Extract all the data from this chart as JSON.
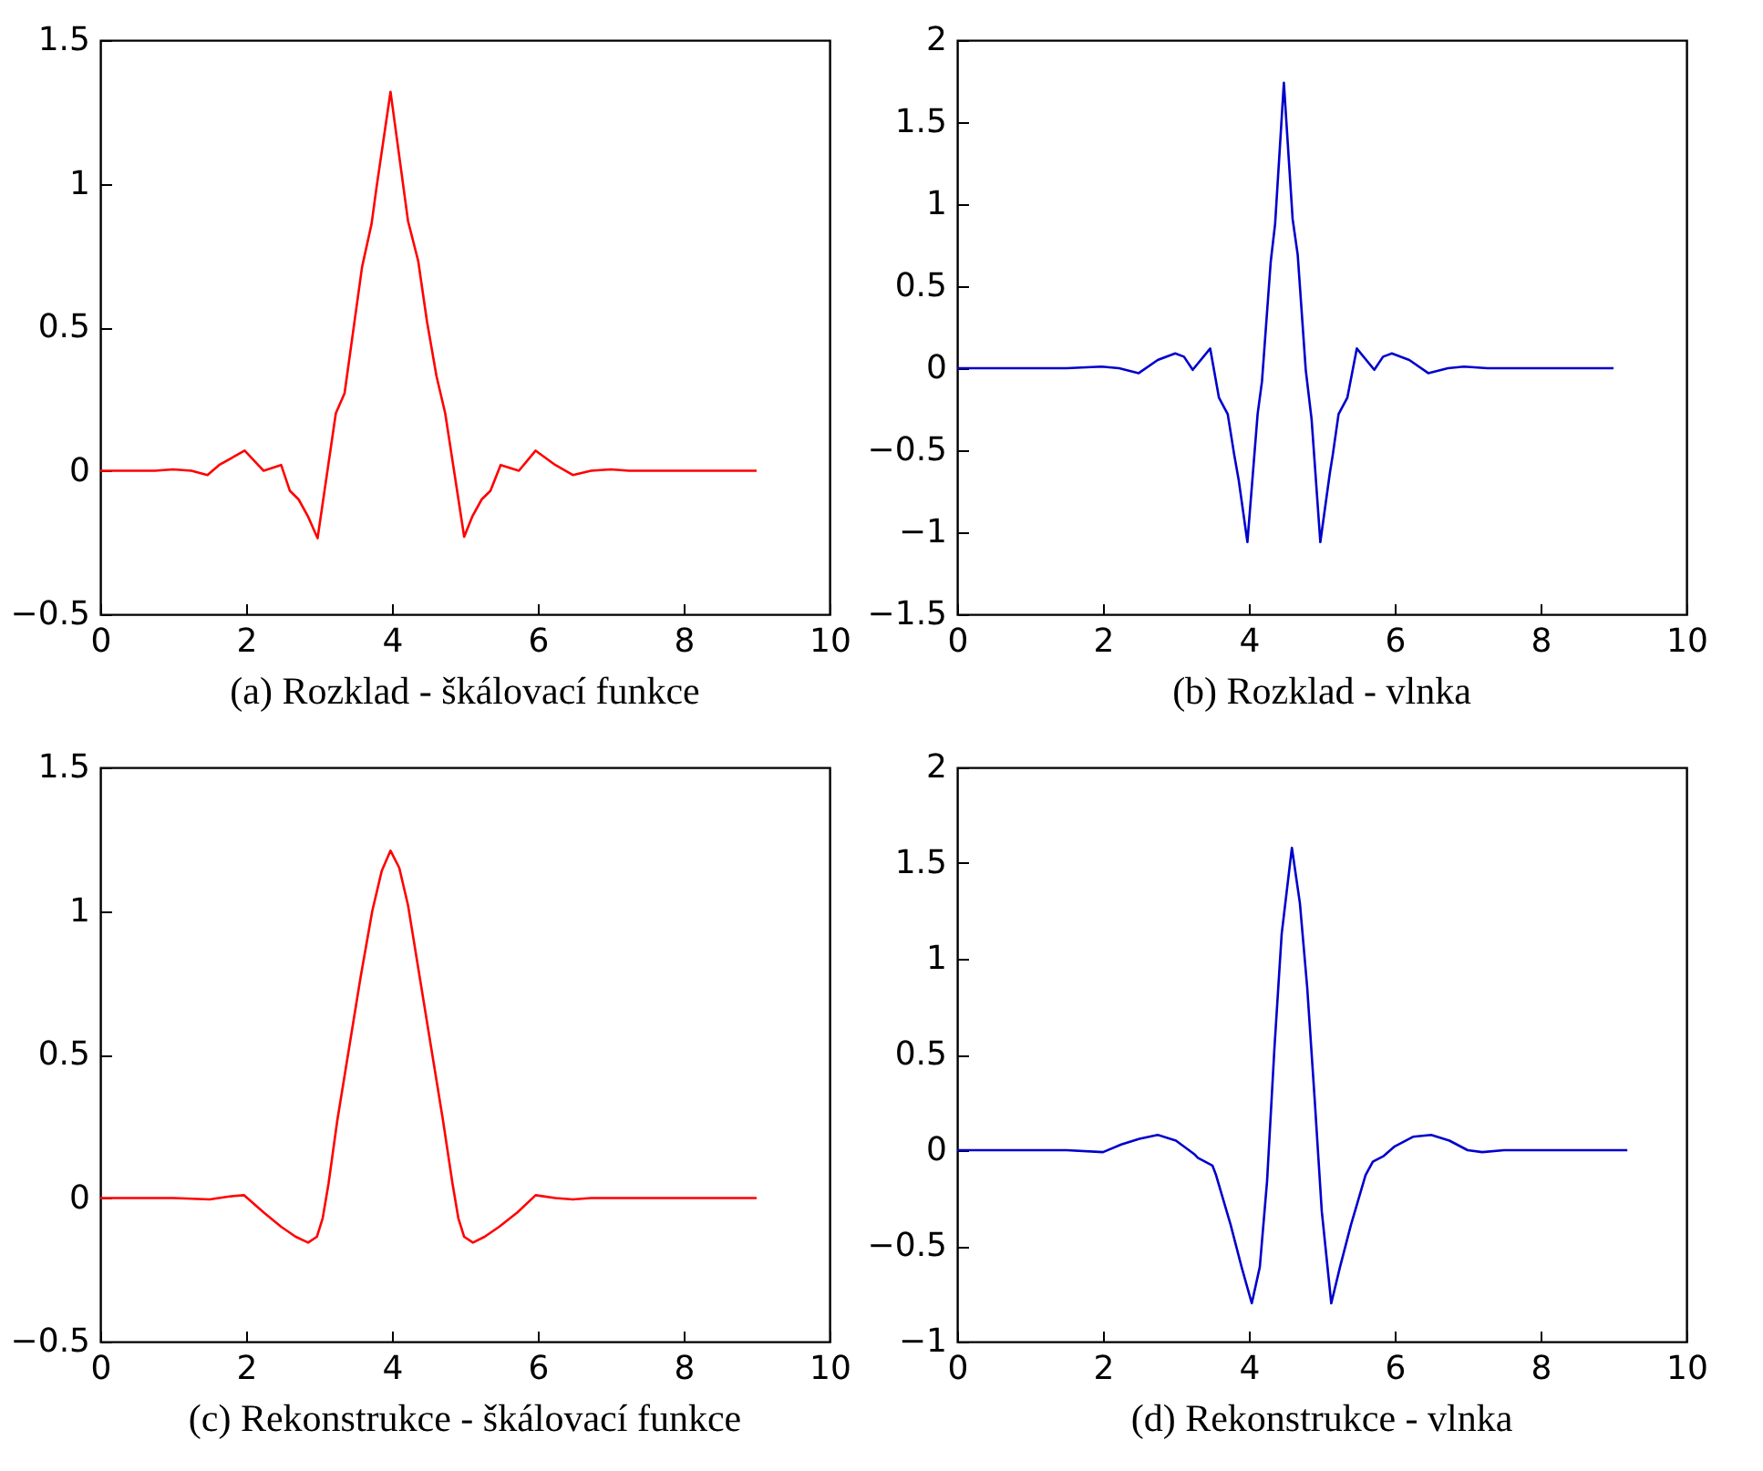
{
  "chart_data": [
    {
      "type": "line",
      "title": "(a) Rozklad - škálovací funkce",
      "xlim": [
        0,
        10
      ],
      "xticks": [
        0,
        2,
        4,
        6,
        8,
        10
      ],
      "ylim": [
        -0.5,
        1.5
      ],
      "yticks": [
        -0.5,
        0,
        0.5,
        1,
        1.5
      ],
      "series": [
        {
          "color": "#ff0000",
          "x": [
            0,
            0.25,
            0.5,
            0.75,
            1,
            1.25,
            1.47,
            1.63,
            1.98,
            2.24,
            2.48,
            2.6,
            2.72,
            2.85,
            2.98,
            3.23,
            3.35,
            3.47,
            3.59,
            3.72,
            3.79,
            3.98,
            4.22,
            4.36,
            4.48,
            4.61,
            4.73,
            4.99,
            5.1,
            5.23,
            5.35,
            5.49,
            5.74,
            5.97,
            6.24,
            6.48,
            6.73,
            7,
            7.25,
            9
          ],
          "values": [
            0,
            0,
            0,
            0,
            0.005,
            0,
            -0.015,
            0.02,
            0.07,
            0,
            0.02,
            -0.07,
            -0.1,
            -0.16,
            -0.235,
            0.2,
            0.27,
            0.49,
            0.71,
            0.86,
            0.99,
            1.32,
            0.87,
            0.73,
            0.52,
            0.33,
            0.2,
            -0.23,
            -0.16,
            -0.1,
            -0.07,
            0.02,
            0,
            0.07,
            0.02,
            -0.015,
            0,
            0.005,
            0,
            0
          ]
        }
      ]
    },
    {
      "type": "line",
      "title": "(b) Rozklad - vlnka",
      "xlim": [
        0,
        10
      ],
      "xticks": [
        0,
        2,
        4,
        6,
        8,
        10
      ],
      "ylim": [
        -1.5,
        2
      ],
      "yticks": [
        -1.5,
        -1,
        -0.5,
        0,
        0.5,
        1,
        1.5,
        2
      ],
      "series": [
        {
          "color": "#0000cc",
          "x": [
            0,
            1,
            1.5,
            1.98,
            2.22,
            2.49,
            2.75,
            2.99,
            3.11,
            3.23,
            3.47,
            3.59,
            3.71,
            3.8,
            3.86,
            3.98,
            4.12,
            4.18,
            4.3,
            4.36,
            4.48,
            4.6,
            4.67,
            4.78,
            4.86,
            4.98,
            5.11,
            5.15,
            5.23,
            5.35,
            5.48,
            5.72,
            5.84,
            5.96,
            6.2,
            6.46,
            6.73,
            6.95,
            7.27,
            9
          ],
          "values": [
            0,
            0,
            0,
            0.01,
            0,
            -0.03,
            0.05,
            0.09,
            0.07,
            -0.01,
            0.12,
            -0.18,
            -0.28,
            -0.53,
            -0.68,
            -1.06,
            -0.28,
            -0.08,
            0.65,
            0.88,
            1.74,
            0.91,
            0.69,
            -0.01,
            -0.31,
            -1.06,
            -0.64,
            -0.53,
            -0.28,
            -0.18,
            0.12,
            -0.01,
            0.07,
            0.09,
            0.05,
            -0.03,
            0,
            0.01,
            0,
            0
          ]
        }
      ]
    },
    {
      "type": "line",
      "title": "(c) Rekonstrukce - škálovací funkce",
      "xlim": [
        0,
        10
      ],
      "xticks": [
        0,
        2,
        4,
        6,
        8,
        10
      ],
      "ylim": [
        -0.5,
        1.5
      ],
      "yticks": [
        -0.5,
        0,
        0.5,
        1,
        1.5
      ],
      "series": [
        {
          "color": "#ff0000",
          "x": [
            0,
            0.5,
            1,
            1.5,
            1.75,
            1.97,
            2.24,
            2.48,
            2.68,
            2.85,
            2.97,
            3.05,
            3.13,
            3.25,
            3.41,
            3.57,
            3.73,
            3.86,
            3.98,
            4.1,
            4.22,
            4.38,
            4.54,
            4.7,
            4.83,
            4.91,
            4.99,
            5.11,
            5.27,
            5.47,
            5.72,
            5.97,
            6.24,
            6.48,
            6.73,
            7,
            8,
            9
          ],
          "values": [
            0,
            0,
            0,
            -0.005,
            0.005,
            0.01,
            -0.05,
            -0.1,
            -0.135,
            -0.155,
            -0.135,
            -0.07,
            0.05,
            0.27,
            0.52,
            0.77,
            1,
            1.14,
            1.21,
            1.15,
            1.02,
            0.77,
            0.52,
            0.27,
            0.05,
            -0.07,
            -0.135,
            -0.155,
            -0.135,
            -0.1,
            -0.05,
            0.01,
            0,
            -0.005,
            0,
            0,
            0,
            0
          ]
        }
      ]
    },
    {
      "type": "line",
      "title": "(d) Rekonstrukce - vlnka",
      "xlim": [
        0,
        10
      ],
      "xticks": [
        0,
        2,
        4,
        6,
        8,
        10
      ],
      "ylim": [
        -1,
        2
      ],
      "yticks": [
        -1,
        -0.5,
        0,
        0.5,
        1,
        1.5,
        2
      ],
      "series": [
        {
          "color": "#0000cc",
          "x": [
            0,
            0.5,
            1,
            1.5,
            2,
            2.25,
            2.5,
            2.75,
            3,
            3.25,
            3.3,
            3.5,
            3.55,
            3.75,
            3.9,
            4.04,
            4.15,
            4.25,
            4.35,
            4.45,
            4.59,
            4.7,
            4.8,
            4.9,
            5,
            5.13,
            5.25,
            5.4,
            5.6,
            5.7,
            5.85,
            6,
            6.25,
            6.5,
            6.75,
            7,
            7.2,
            7.5,
            8,
            9.19
          ],
          "values": [
            0,
            0,
            0,
            0,
            -0.01,
            0.03,
            0.06,
            0.08,
            0.05,
            -0.02,
            -0.04,
            -0.08,
            -0.13,
            -0.39,
            -0.61,
            -0.8,
            -0.61,
            -0.16,
            0.53,
            1.13,
            1.58,
            1.29,
            0.85,
            0.28,
            -0.32,
            -0.8,
            -0.61,
            -0.39,
            -0.13,
            -0.06,
            -0.03,
            0.02,
            0.07,
            0.08,
            0.05,
            0,
            -0.01,
            0,
            0,
            0
          ]
        }
      ]
    }
  ]
}
